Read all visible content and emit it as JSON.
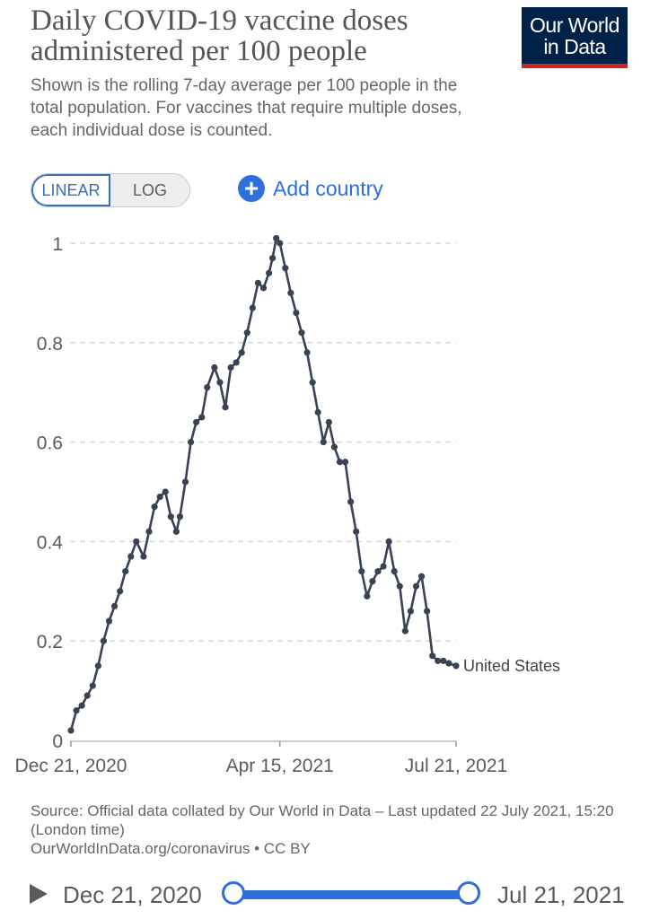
{
  "header": {
    "title": "Daily COVID-19 vaccine doses administered per 100 people",
    "subtitle": "Shown is the rolling 7-day average per 100 people in the total population. For vaccines that require multiple doses, each individual dose is counted.",
    "logo_line1": "Our World",
    "logo_line2": "in Data"
  },
  "controls": {
    "linear_label": "LINEAR",
    "log_label": "LOG",
    "add_country_label": "Add country",
    "add_icon": "plus-circle-icon"
  },
  "colors": {
    "line": "#3a4255",
    "accent": "#2f6fdc",
    "logo_bg": "#002147",
    "logo_bar": "#ce261e"
  },
  "chart_data": {
    "type": "line",
    "title": "Daily COVID-19 vaccine doses administered per 100 people",
    "xlabel": "",
    "ylabel": "",
    "ylim": [
      0,
      1
    ],
    "yticks": [
      0,
      0.2,
      0.4,
      0.6,
      0.8,
      1
    ],
    "ytick_labels": [
      "0",
      "0.2",
      "0.4",
      "0.6",
      "0.8",
      "1"
    ],
    "xticks": [
      0,
      115,
      212
    ],
    "xtick_labels": [
      "Dec 21, 2020",
      "Apr 15, 2021",
      "Jul 21, 2021"
    ],
    "grid": true,
    "series": [
      {
        "name": "United States",
        "x": [
          0,
          3,
          6,
          9,
          12,
          15,
          18,
          21,
          24,
          27,
          30,
          33,
          36,
          40,
          43,
          46,
          49,
          52,
          55,
          58,
          60,
          63,
          66,
          69,
          72,
          75,
          79,
          82,
          85,
          88,
          91,
          94,
          97,
          100,
          103,
          106,
          109,
          111,
          113,
          115,
          118,
          121,
          124,
          127,
          130,
          133,
          136,
          139,
          142,
          145,
          148,
          151,
          154,
          157,
          160,
          163,
          166,
          169,
          172,
          175,
          178,
          181,
          184,
          187,
          190,
          193,
          196,
          199,
          202,
          205,
          208,
          212
        ],
        "y": [
          0.02,
          0.06,
          0.07,
          0.09,
          0.11,
          0.15,
          0.2,
          0.24,
          0.27,
          0.3,
          0.34,
          0.37,
          0.4,
          0.37,
          0.42,
          0.47,
          0.49,
          0.5,
          0.45,
          0.42,
          0.45,
          0.52,
          0.6,
          0.64,
          0.65,
          0.71,
          0.75,
          0.72,
          0.67,
          0.75,
          0.76,
          0.78,
          0.82,
          0.87,
          0.92,
          0.91,
          0.94,
          0.97,
          1.01,
          1.0,
          0.95,
          0.9,
          0.86,
          0.82,
          0.78,
          0.72,
          0.66,
          0.6,
          0.64,
          0.59,
          0.56,
          0.56,
          0.48,
          0.42,
          0.34,
          0.29,
          0.32,
          0.34,
          0.35,
          0.4,
          0.34,
          0.31,
          0.22,
          0.26,
          0.31,
          0.33,
          0.26,
          0.17,
          0.16,
          0.16,
          0.155,
          0.15
        ]
      }
    ],
    "series_label": "United States"
  },
  "footer": {
    "source_line1": "Source: Official data collated by Our World in Data – Last updated 22 July 2021, 15:20 (London time)",
    "source_line2": "OurWorldInData.org/coronavirus • CC BY"
  },
  "timeline": {
    "play_icon": "play-icon",
    "start_label": "Dec 21, 2020",
    "end_label": "Jul 21, 2021"
  }
}
